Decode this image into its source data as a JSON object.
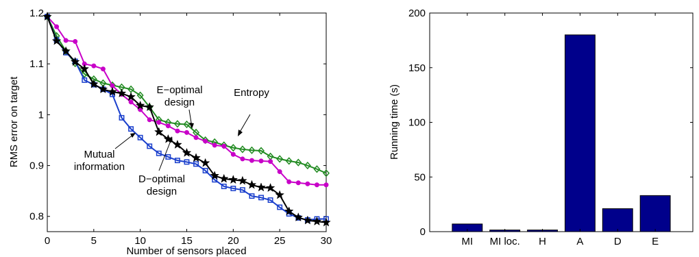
{
  "chart_data": [
    {
      "type": "line",
      "title": "",
      "xlabel": "Number of sensors placed",
      "ylabel": "RMS error on target",
      "xlim": [
        0,
        30
      ],
      "ylim": [
        0.77,
        1.2
      ],
      "xticks": [
        0,
        5,
        10,
        15,
        20,
        25,
        30
      ],
      "xtick_labels": [
        "0",
        "5",
        "10",
        "15",
        "20",
        "25",
        "30"
      ],
      "yticks": [
        0.8,
        0.9,
        1.0,
        1.1,
        1.2
      ],
      "ytick_labels": [
        "0.8",
        "0.9",
        "1",
        "1.1",
        "1.2"
      ],
      "grid": false,
      "x": [
        0,
        1,
        2,
        3,
        4,
        5,
        6,
        7,
        8,
        9,
        10,
        11,
        12,
        13,
        14,
        15,
        16,
        17,
        18,
        19,
        20,
        21,
        22,
        23,
        24,
        25,
        26,
        27,
        28,
        29,
        30
      ],
      "series": [
        {
          "key": "entropy",
          "color": "#228b22",
          "marker": "diamond",
          "values": [
            1.193,
            1.155,
            1.125,
            1.101,
            1.08,
            1.07,
            1.062,
            1.058,
            1.054,
            1.05,
            1.038,
            1.015,
            0.99,
            0.985,
            0.982,
            0.981,
            0.965,
            0.95,
            0.946,
            0.94,
            0.935,
            0.932,
            0.93,
            0.929,
            0.918,
            0.913,
            0.909,
            0.906,
            0.9,
            0.893,
            0.885
          ]
        },
        {
          "key": "e_optimal",
          "color": "#c800c8",
          "marker": "circle",
          "values": [
            1.193,
            1.173,
            1.146,
            1.144,
            1.1,
            1.096,
            1.09,
            1.057,
            1.04,
            1.025,
            1.01,
            0.99,
            0.985,
            0.978,
            0.968,
            0.965,
            0.955,
            0.948,
            0.94,
            0.938,
            0.922,
            0.913,
            0.91,
            0.909,
            0.908,
            0.888,
            0.868,
            0.866,
            0.864,
            0.862,
            0.862
          ]
        },
        {
          "key": "mutual_info",
          "color": "#1a3fcc",
          "marker": "square",
          "values": [
            1.193,
            1.147,
            1.122,
            1.105,
            1.068,
            1.059,
            1.05,
            1.04,
            0.994,
            0.972,
            0.955,
            0.938,
            0.924,
            0.917,
            0.91,
            0.907,
            0.903,
            0.89,
            0.872,
            0.859,
            0.855,
            0.852,
            0.84,
            0.837,
            0.832,
            0.818,
            0.805,
            0.797,
            0.793,
            0.795,
            0.795
          ]
        },
        {
          "key": "d_optimal",
          "color": "#000000",
          "marker": "star",
          "values": [
            1.193,
            1.145,
            1.125,
            1.104,
            1.09,
            1.06,
            1.05,
            1.045,
            1.042,
            1.035,
            1.018,
            1.015,
            0.966,
            0.952,
            0.941,
            0.925,
            0.915,
            0.905,
            0.88,
            0.874,
            0.872,
            0.87,
            0.862,
            0.857,
            0.856,
            0.842,
            0.81,
            0.798,
            0.792,
            0.79,
            0.788
          ]
        }
      ],
      "annotations": [
        {
          "text": "E−optimal",
          "text2": "design"
        },
        {
          "text": "Entropy",
          "text2": ""
        },
        {
          "text": "Mutual",
          "text2": "information"
        },
        {
          "text": "D−optimal",
          "text2": "design"
        }
      ]
    },
    {
      "type": "bar",
      "title": "",
      "xlabel": "",
      "ylabel": "Running time (s)",
      "categories": [
        "MI",
        "MI loc.",
        "H",
        "A",
        "D",
        "E"
      ],
      "values": [
        7,
        1.5,
        1.5,
        180,
        21,
        33
      ],
      "ylim": [
        0,
        200
      ],
      "yticks": [
        0,
        50,
        100,
        150,
        200
      ],
      "ytick_labels": [
        "0",
        "50",
        "100",
        "150",
        "200"
      ],
      "bar_color": "#00008b",
      "grid": false
    }
  ]
}
